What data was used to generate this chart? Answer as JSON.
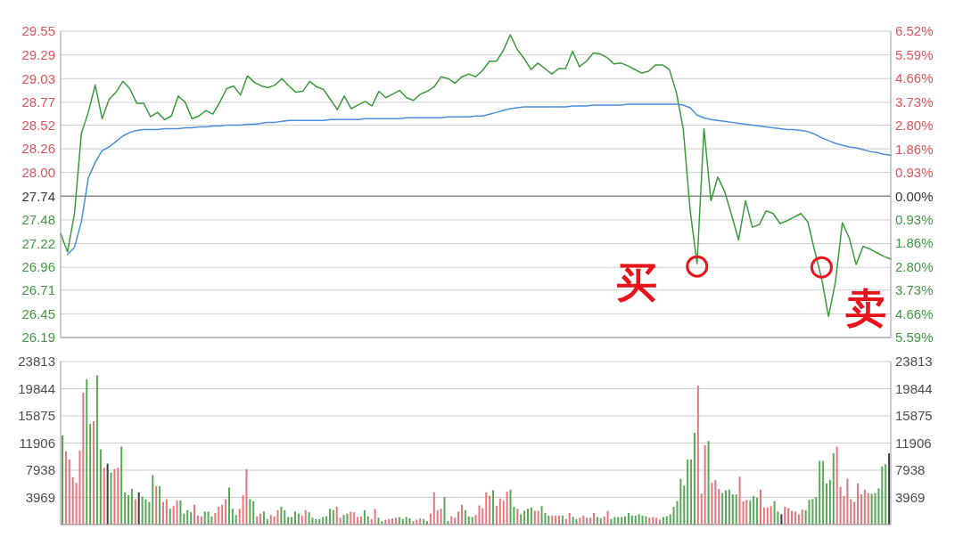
{
  "chart_data": [
    {
      "type": "line",
      "categories": [
        null,
        null,
        null,
        null,
        null,
        null,
        null,
        null,
        null,
        null,
        null,
        null,
        null,
        null,
        null,
        null,
        null,
        null,
        null,
        null,
        null,
        null,
        null,
        null,
        null,
        null,
        null,
        null,
        null,
        null,
        null,
        null,
        null,
        null,
        null,
        null,
        null,
        null,
        null,
        null,
        null,
        null,
        null,
        null,
        null,
        null,
        null,
        null,
        null,
        null,
        null,
        null,
        null,
        null,
        null,
        null,
        null,
        null,
        null,
        null,
        null,
        null,
        null,
        null,
        null,
        null,
        null,
        null,
        null,
        null,
        null,
        null,
        null,
        null,
        null,
        null,
        null,
        null,
        null,
        null,
        null,
        null,
        null,
        null,
        null,
        null,
        null,
        null,
        null,
        null,
        null,
        null,
        null,
        null,
        null,
        null,
        null,
        null,
        null,
        null,
        null,
        null,
        null,
        null,
        null,
        null,
        null,
        null,
        null,
        null,
        null,
        null,
        null,
        null,
        null,
        null,
        null,
        null,
        null,
        null,
        null
      ],
      "series": [
        {
          "color": "#3c9a3c",
          "values": [
            27.33,
            27.13,
            27.55,
            28.43,
            28.66,
            28.96,
            28.59,
            28.8,
            28.88,
            29.0,
            28.92,
            28.76,
            28.76,
            28.61,
            28.66,
            28.58,
            28.62,
            28.84,
            28.77,
            28.59,
            28.62,
            28.68,
            28.64,
            28.77,
            28.92,
            28.95,
            28.85,
            29.06,
            28.99,
            28.95,
            28.93,
            28.96,
            29.03,
            28.95,
            28.88,
            28.89,
            29.0,
            28.94,
            28.91,
            28.8,
            28.69,
            28.84,
            28.7,
            28.74,
            28.78,
            28.73,
            28.89,
            28.82,
            28.86,
            28.9,
            28.82,
            28.79,
            28.86,
            28.89,
            28.94,
            29.05,
            29.03,
            28.98,
            29.05,
            29.08,
            29.05,
            29.12,
            29.22,
            29.22,
            29.34,
            29.51,
            29.35,
            29.25,
            29.13,
            29.2,
            29.14,
            29.08,
            29.14,
            29.14,
            29.33,
            29.16,
            29.22,
            29.31,
            29.3,
            29.26,
            29.19,
            29.2,
            29.17,
            29.13,
            29.09,
            29.11,
            29.18,
            29.18,
            29.13,
            28.88,
            28.48,
            27.58,
            27.0,
            28.48,
            27.69,
            27.95,
            27.79,
            27.53,
            27.26,
            27.69,
            27.4,
            27.43,
            27.58,
            27.55,
            27.44,
            27.47,
            27.51,
            27.55,
            27.46,
            27.14,
            26.84,
            26.42,
            26.8,
            27.45,
            27.28,
            26.99,
            27.19,
            27.16,
            27.12,
            27.08,
            27.05
          ]
        },
        {
          "color": "#4a8fdc",
          "values": [
            null,
            27.1,
            27.18,
            27.46,
            27.94,
            28.11,
            28.24,
            28.28,
            28.34,
            28.4,
            28.44,
            28.46,
            28.47,
            28.47,
            28.47,
            28.48,
            28.48,
            28.48,
            28.49,
            28.49,
            28.5,
            28.5,
            28.51,
            28.51,
            28.52,
            28.52,
            28.52,
            28.53,
            28.53,
            28.54,
            28.55,
            28.55,
            28.56,
            28.57,
            28.57,
            28.57,
            28.57,
            28.57,
            28.57,
            28.58,
            28.58,
            28.58,
            28.58,
            28.58,
            28.59,
            28.59,
            28.59,
            28.59,
            28.59,
            28.59,
            28.6,
            28.6,
            28.6,
            28.6,
            28.6,
            28.6,
            28.61,
            28.61,
            28.61,
            28.61,
            28.62,
            28.62,
            28.64,
            28.66,
            28.68,
            28.7,
            28.71,
            28.72,
            28.72,
            28.72,
            28.72,
            28.72,
            28.72,
            28.72,
            28.73,
            28.73,
            28.73,
            28.74,
            28.74,
            28.74,
            28.74,
            28.74,
            28.75,
            28.75,
            28.75,
            28.75,
            28.75,
            28.75,
            28.75,
            28.75,
            28.74,
            28.71,
            28.63,
            28.6,
            28.58,
            28.57,
            28.56,
            28.55,
            28.54,
            28.53,
            28.52,
            28.51,
            28.5,
            28.49,
            28.48,
            28.47,
            28.47,
            28.46,
            28.45,
            28.42,
            28.38,
            28.35,
            28.32,
            28.3,
            28.28,
            28.27,
            28.25,
            28.23,
            28.22,
            28.2,
            28.19
          ]
        },
        {
          "type": "scatter",
          "color": "#e8141b",
          "marker": "circle",
          "values": [
            null,
            null,
            null,
            null,
            null,
            null,
            null,
            null,
            null,
            null,
            null,
            null,
            null,
            null,
            null,
            null,
            null,
            null,
            null,
            null,
            null,
            null,
            null,
            null,
            null,
            null,
            null,
            null,
            null,
            null,
            null,
            null,
            null,
            null,
            null,
            null,
            null,
            null,
            null,
            null,
            null,
            null,
            null,
            null,
            null,
            null,
            null,
            null,
            null,
            null,
            null,
            null,
            null,
            null,
            null,
            null,
            null,
            null,
            null,
            null,
            null,
            null,
            null,
            null,
            null,
            null,
            null,
            null,
            null,
            null,
            null,
            null,
            null,
            null,
            null,
            null,
            null,
            null,
            null,
            null,
            null,
            null,
            null,
            null,
            null,
            null,
            null,
            null,
            null,
            null,
            null,
            null,
            26.97,
            null,
            null,
            null,
            null,
            null,
            null,
            null,
            null,
            null,
            null,
            null,
            null,
            null,
            null,
            null,
            null,
            null,
            26.96,
            null,
            null,
            null,
            null,
            null,
            null,
            null,
            null,
            null,
            null
          ]
        }
      ],
      "ylim": [
        26.19,
        29.55
      ],
      "yticks": [
        26.19,
        26.45,
        26.71,
        26.96,
        27.22,
        27.48,
        27.74,
        {
          "value": 28,
          "label": "28.00"
        },
        28.26,
        28.52,
        28.77,
        29.03,
        29.29,
        29.55
      ],
      "y2lim": [
        -5.59,
        6.52
      ],
      "y2ticks": [
        {
          "value": -5.59,
          "label": "5.59%"
        },
        {
          "value": -4.66,
          "label": "4.66%"
        },
        {
          "value": -3.73,
          "label": "3.73%"
        },
        {
          "value": -2.8,
          "label": "2.80%"
        },
        {
          "value": -1.86,
          "label": "1.86%"
        },
        {
          "value": -0.93,
          "label": "0.93%"
        },
        {
          "value": 0,
          "label": "0.00%"
        },
        {
          "value": 0.93,
          "label": "0.93%"
        },
        {
          "value": 1.86,
          "label": "1.86%"
        },
        {
          "value": 2.8,
          "label": "2.80%"
        },
        {
          "value": 3.73,
          "label": "3.73%"
        },
        {
          "value": 4.66,
          "label": "4.66%"
        },
        {
          "value": 5.59,
          "label": "5.59%"
        },
        {
          "value": 6.52,
          "label": "6.52%"
        }
      ],
      "grid": "y",
      "tick_labels": "y",
      "ref_lines": [
        {
          "axis": "y",
          "value": 27.74,
          "color": "#8c8c8c"
        }
      ],
      "annotations": [
        "买",
        "卖"
      ]
    },
    {
      "type": "bar",
      "categories": [
        null,
        null,
        null,
        null,
        null,
        null,
        null,
        null,
        null,
        null,
        null,
        null,
        null,
        null,
        null,
        null,
        null,
        null,
        null,
        null,
        null,
        null,
        null,
        null,
        null,
        null,
        null,
        null,
        null,
        null,
        null,
        null,
        null,
        null,
        null,
        null,
        null,
        null,
        null,
        null,
        null,
        null,
        null,
        null,
        null,
        null,
        null,
        null,
        null,
        null,
        null,
        null,
        null,
        null,
        null,
        null,
        null,
        null,
        null,
        null,
        null,
        null,
        null,
        null,
        null,
        null,
        null,
        null,
        null,
        null,
        null,
        null,
        null,
        null,
        null,
        null,
        null,
        null,
        null,
        null,
        null,
        null,
        null,
        null,
        null,
        null,
        null,
        null,
        null,
        null,
        null,
        null,
        null,
        null,
        null,
        null,
        null,
        null,
        null,
        null,
        null,
        null,
        null,
        null,
        null,
        null,
        null,
        null,
        null,
        null,
        null,
        null,
        null,
        null,
        null,
        null,
        null,
        null,
        null,
        null,
        null,
        null,
        null,
        null,
        null,
        null,
        null,
        null,
        null,
        null,
        null,
        null,
        null,
        null,
        null,
        null,
        null,
        null,
        null,
        null,
        null,
        null,
        null,
        null,
        null,
        null,
        null,
        null,
        null,
        null,
        null,
        null,
        null,
        null,
        null,
        null,
        null,
        null,
        null,
        null,
        null,
        null,
        null,
        null,
        null,
        null,
        null,
        null,
        null,
        null,
        null,
        null,
        null,
        null,
        null,
        null,
        null,
        null,
        null,
        null,
        null,
        null,
        null,
        null,
        null,
        null,
        null,
        null,
        null,
        null,
        null,
        null,
        null,
        null,
        null,
        null,
        null,
        null,
        null,
        null,
        null,
        null,
        null,
        null,
        null,
        null,
        null,
        null,
        null,
        null,
        null,
        null,
        null,
        null,
        null,
        null,
        null,
        null,
        null,
        null,
        null,
        null,
        null,
        null,
        null,
        null,
        null,
        null,
        null,
        null,
        null,
        null,
        null,
        null,
        null,
        null,
        null,
        null,
        null
      ],
      "values": [
        13000,
        10700,
        9500,
        6900,
        6100,
        10800,
        19300,
        21200,
        14700,
        15100,
        21800,
        11000,
        8300,
        8900,
        7600,
        8100,
        8300,
        11400,
        4700,
        4300,
        5200,
        3700,
        4700,
        4100,
        3700,
        3300,
        7200,
        5600,
        5600,
        3300,
        3700,
        2300,
        2700,
        3500,
        3500,
        1600,
        2100,
        1800,
        2900,
        1300,
        1200,
        1900,
        1900,
        1200,
        1700,
        2600,
        2900,
        3700,
        5400,
        2300,
        1400,
        2300,
        4300,
        8100,
        3700,
        3400,
        1200,
        1600,
        1900,
        800,
        1400,
        1200,
        2100,
        2600,
        2100,
        1100,
        1100,
        1900,
        1600,
        1300,
        2100,
        1800,
        1000,
        800,
        800,
        1100,
        1200,
        2300,
        2100,
        2600,
        1000,
        1400,
        1600,
        1900,
        1800,
        1100,
        1200,
        2100,
        1200,
        800,
        2300,
        1000,
        500,
        700,
        800,
        900,
        1000,
        1100,
        800,
        1100,
        900,
        500,
        700,
        900,
        800,
        500,
        1600,
        4700,
        2100,
        2300,
        4000,
        500,
        1200,
        1000,
        1900,
        2900,
        2100,
        1200,
        1100,
        1400,
        2800,
        2400,
        4700,
        4200,
        5000,
        2700,
        3800,
        3500,
        4800,
        5100,
        2600,
        2300,
        1500,
        2000,
        2300,
        2500,
        2000,
        2000,
        2700,
        1700,
        1300,
        1300,
        1300,
        1300,
        1300,
        800,
        1700,
        1100,
        800,
        1000,
        1300,
        1000,
        1000,
        1700,
        1100,
        900,
        1200,
        2000,
        800,
        1100,
        1100,
        1100,
        1200,
        1700,
        1300,
        1300,
        1500,
        1300,
        1200,
        1000,
        1100,
        1000,
        700,
        1100,
        1200,
        1500,
        2600,
        3400,
        6700,
        5700,
        9500,
        9500,
        13400,
        20300,
        4500,
        11600,
        12200,
        6100,
        6500,
        5200,
        4600,
        5000,
        5100,
        4400,
        4400,
        7000,
        3400,
        3600,
        3500,
        4200,
        3900,
        5100,
        2500,
        2500,
        2700,
        3400,
        1900,
        1500,
        2600,
        2400,
        2000,
        1900,
        1500,
        2200,
        2100,
        3600,
        3700,
        4000,
        9300,
        9300,
        6000,
        6500,
        10400,
        11400,
        5500,
        4200,
        6700,
        3700,
        3300,
        6000,
        4400,
        5100,
        4600,
        4500,
        4600,
        5300,
        8500,
        8800,
        10400
      ],
      "colors": [
        "#58a858",
        "#e8757d",
        "#e8757d",
        "#e8757d",
        "#e8757d",
        "#e8757d",
        "#e8757d",
        "#58a858",
        "#58a858",
        "#e8757d",
        "#58a858",
        "#58a858",
        "#e8757d",
        "#3c3c3c",
        "#58a858",
        "#e8757d",
        "#e8757d",
        "#58a858",
        "#58a858",
        "#58a858",
        "#58a858",
        "#e8757d",
        "#3c3c3c",
        "#58a858",
        "#58a858",
        "#58a858",
        "#58a858",
        "#e8757d",
        "#58a858",
        "#e8757d",
        "#e8757d",
        "#58a858",
        "#e8757d",
        "#e8757d",
        "#58a858",
        "#58a858",
        "#58a858",
        "#58a858",
        "#e8757d",
        "#e8757d",
        "#e8757d",
        "#58a858",
        "#58a858",
        "#58a858",
        "#e8757d",
        "#e8757d",
        "#e8757d",
        "#e8757d",
        "#58a858",
        "#58a858",
        "#58a858",
        "#e8757d",
        "#e8757d",
        "#e8757d",
        "#58a858",
        "#58a858",
        "#e8757d",
        "#e8757d",
        "#58a858",
        "#58a858",
        "#e8757d",
        "#e8757d",
        "#e8757d",
        "#58a858",
        "#58a858",
        "#58a858",
        "#58a858",
        "#58a858",
        "#58a858",
        "#e8757d",
        "#e8757d",
        "#58a858",
        "#58a858",
        "#58a858",
        "#58a858",
        "#58a858",
        "#58a858",
        "#58a858",
        "#58a858",
        "#e8757d",
        "#e8757d",
        "#58a858",
        "#58a858",
        "#e8757d",
        "#e8757d",
        "#e8757d",
        "#e8757d",
        "#58a858",
        "#58a858",
        "#e8757d",
        "#e8757d",
        "#58a858",
        "#58a858",
        "#e8757d",
        "#e8757d",
        "#e8757d",
        "#e8757d",
        "#58a858",
        "#58a858",
        "#58a858",
        "#58a858",
        "#e8757d",
        "#e8757d",
        "#e8757d",
        "#58a858",
        "#58a858",
        "#e8757d",
        "#e8757d",
        "#e8757d",
        "#e8757d",
        "#58a858",
        "#58a858",
        "#e8757d",
        "#e8757d",
        "#e8757d",
        "#e8757d",
        "#58a858",
        "#58a858",
        "#58a858",
        "#e8757d",
        "#e8757d",
        "#e8757d",
        "#e8757d",
        "#e8757d",
        "#58a858",
        "#e8757d",
        "#e8757d",
        "#e8757d",
        "#e8757d",
        "#58a858",
        "#58a858",
        "#e8757d",
        "#58a858",
        "#58a858",
        "#58a858",
        "#58a858",
        "#e8757d",
        "#e8757d",
        "#58a858",
        "#58a858",
        "#58a858",
        "#e8757d",
        "#e8757d",
        "#e8757d",
        "#58a858",
        "#e8757d",
        "#e8757d",
        "#58a858",
        "#58a858",
        "#e8757d",
        "#e8757d",
        "#e8757d",
        "#e8757d",
        "#e8757d",
        "#58a858",
        "#58a858",
        "#e8757d",
        "#e8757d",
        "#58a858",
        "#58a858",
        "#58a858",
        "#58a858",
        "#58a858",
        "#58a858",
        "#58a858",
        "#58a858",
        "#58a858",
        "#58a858",
        "#58a858",
        "#e8757d",
        "#e8757d",
        "#e8757d",
        "#e8757d",
        "#58a858",
        "#58a858",
        "#58a858",
        "#58a858",
        "#58a858",
        "#58a858",
        "#58a858",
        "#58a858",
        "#58a858",
        "#58a858",
        "#e8757d",
        "#e8757d",
        "#e8757d",
        "#58a858",
        "#e8757d",
        "#e8757d",
        "#e8757d",
        "#58a858",
        "#58a858",
        "#58a858",
        "#58a858",
        "#58a858",
        "#e8757d",
        "#e8757d",
        "#e8757d",
        "#58a858",
        "#58a858",
        "#58a858",
        "#e8757d",
        "#e8757d",
        "#e8757d",
        "#e8757d",
        "#58a858",
        "#58a858",
        "#3c3c3c",
        "#e8757d",
        "#e8757d",
        "#e8757d",
        "#e8757d",
        "#e8757d",
        "#e8757d",
        "#58a858",
        "#58a858",
        "#58a858",
        "#58a858",
        "#58a858",
        "#58a858",
        "#58a858",
        "#58a858",
        "#58a858",
        "#e8757d",
        "#e8757d",
        "#e8757d",
        "#e8757d",
        "#e8757d",
        "#e8757d",
        "#e8757d",
        "#e8757d",
        "#e8757d",
        "#e8757d",
        "#58a858",
        "#58a858",
        "#58a858",
        "#58a858",
        "#58a858",
        "#3c3c3c"
      ],
      "ylim": [
        0,
        23813
      ],
      "yticks": [
        3969,
        7938,
        11906,
        15875,
        19844,
        23813
      ],
      "y2lim": [
        0,
        23813
      ],
      "y2ticks": [
        3969,
        7938,
        11906,
        15875,
        19844,
        23813
      ],
      "grid": "y",
      "tick_labels": "y"
    }
  ]
}
